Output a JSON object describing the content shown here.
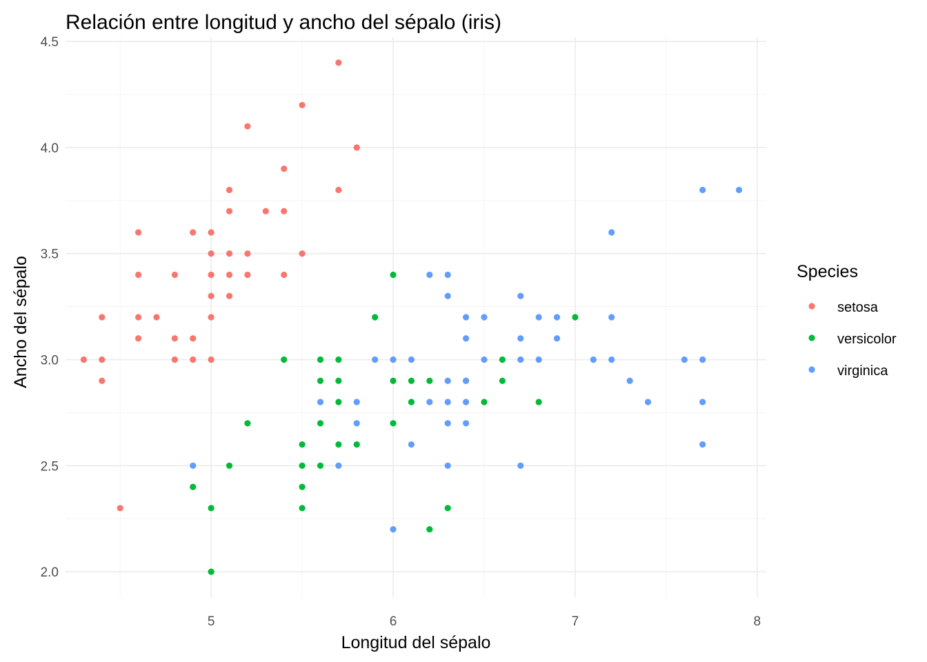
{
  "chart_data": {
    "type": "scatter",
    "title": "Relación entre longitud y ancho del sépalo (iris)",
    "xlabel": "Longitud del sépalo",
    "ylabel": "Ancho del sépalo",
    "xlim": [
      4.2,
      8.05
    ],
    "ylim": [
      1.88,
      4.52
    ],
    "x_ticks": [
      5,
      6,
      7,
      8
    ],
    "y_ticks": [
      2.0,
      2.5,
      3.0,
      3.5,
      4.0,
      4.5
    ],
    "x_tick_labels": [
      "5",
      "6",
      "7",
      "8"
    ],
    "y_tick_labels": [
      "2.0",
      "2.5",
      "3.0",
      "3.5",
      "4.0",
      "4.5"
    ],
    "grid": true,
    "legend": {
      "title": "Species",
      "position": "right"
    },
    "series": [
      {
        "name": "setosa",
        "color": "#f8766d",
        "points": [
          [
            5.7,
            4.4
          ],
          [
            5.5,
            4.2
          ],
          [
            5.2,
            4.1
          ],
          [
            5.8,
            4.0
          ],
          [
            5.4,
            3.9
          ],
          [
            5.1,
            3.8
          ],
          [
            5.7,
            3.8
          ],
          [
            5.1,
            3.7
          ],
          [
            5.3,
            3.7
          ],
          [
            5.4,
            3.7
          ],
          [
            4.6,
            3.6
          ],
          [
            4.9,
            3.6
          ],
          [
            5.0,
            3.6
          ],
          [
            5.0,
            3.5
          ],
          [
            5.1,
            3.5
          ],
          [
            5.2,
            3.5
          ],
          [
            5.5,
            3.5
          ],
          [
            4.6,
            3.4
          ],
          [
            4.8,
            3.4
          ],
          [
            5.0,
            3.4
          ],
          [
            5.1,
            3.4
          ],
          [
            5.2,
            3.4
          ],
          [
            5.4,
            3.4
          ],
          [
            5.0,
            3.3
          ],
          [
            5.1,
            3.3
          ],
          [
            4.4,
            3.2
          ],
          [
            4.6,
            3.2
          ],
          [
            4.7,
            3.2
          ],
          [
            5.0,
            3.2
          ],
          [
            4.6,
            3.1
          ],
          [
            4.8,
            3.1
          ],
          [
            4.9,
            3.1
          ],
          [
            4.3,
            3.0
          ],
          [
            4.4,
            3.0
          ],
          [
            4.8,
            3.0
          ],
          [
            4.9,
            3.0
          ],
          [
            5.0,
            3.0
          ],
          [
            4.4,
            2.9
          ],
          [
            4.5,
            2.3
          ]
        ]
      },
      {
        "name": "versicolor",
        "color": "#00ba38",
        "points": [
          [
            6.0,
            3.4
          ],
          [
            5.9,
            3.2
          ],
          [
            7.0,
            3.2
          ],
          [
            5.4,
            3.0
          ],
          [
            5.6,
            3.0
          ],
          [
            5.7,
            3.0
          ],
          [
            6.6,
            3.0
          ],
          [
            5.6,
            2.9
          ],
          [
            5.7,
            2.9
          ],
          [
            6.0,
            2.9
          ],
          [
            6.1,
            2.9
          ],
          [
            6.2,
            2.9
          ],
          [
            6.4,
            2.9
          ],
          [
            6.6,
            2.9
          ],
          [
            5.7,
            2.8
          ],
          [
            6.1,
            2.8
          ],
          [
            6.5,
            2.8
          ],
          [
            6.8,
            2.8
          ],
          [
            5.2,
            2.7
          ],
          [
            5.6,
            2.7
          ],
          [
            6.0,
            2.7
          ],
          [
            5.5,
            2.6
          ],
          [
            5.7,
            2.6
          ],
          [
            5.8,
            2.6
          ],
          [
            5.1,
            2.5
          ],
          [
            5.5,
            2.5
          ],
          [
            5.6,
            2.5
          ],
          [
            4.9,
            2.4
          ],
          [
            5.5,
            2.4
          ],
          [
            5.0,
            2.3
          ],
          [
            5.5,
            2.3
          ],
          [
            6.3,
            2.3
          ],
          [
            6.2,
            2.2
          ],
          [
            5.0,
            2.0
          ]
        ]
      },
      {
        "name": "virginica",
        "color": "#619cff",
        "points": [
          [
            7.7,
            3.8
          ],
          [
            7.9,
            3.8
          ],
          [
            7.2,
            3.6
          ],
          [
            6.2,
            3.4
          ],
          [
            6.3,
            3.4
          ],
          [
            6.3,
            3.3
          ],
          [
            6.7,
            3.3
          ],
          [
            6.4,
            3.2
          ],
          [
            6.5,
            3.2
          ],
          [
            6.8,
            3.2
          ],
          [
            6.9,
            3.2
          ],
          [
            7.2,
            3.2
          ],
          [
            6.4,
            3.1
          ],
          [
            6.7,
            3.1
          ],
          [
            6.9,
            3.1
          ],
          [
            5.9,
            3.0
          ],
          [
            6.0,
            3.0
          ],
          [
            6.1,
            3.0
          ],
          [
            6.5,
            3.0
          ],
          [
            6.7,
            3.0
          ],
          [
            6.8,
            3.0
          ],
          [
            7.1,
            3.0
          ],
          [
            7.2,
            3.0
          ],
          [
            7.6,
            3.0
          ],
          [
            7.7,
            3.0
          ],
          [
            6.3,
            2.9
          ],
          [
            6.4,
            2.9
          ],
          [
            7.3,
            2.9
          ],
          [
            5.6,
            2.8
          ],
          [
            5.8,
            2.8
          ],
          [
            6.2,
            2.8
          ],
          [
            6.3,
            2.8
          ],
          [
            6.4,
            2.8
          ],
          [
            7.4,
            2.8
          ],
          [
            7.7,
            2.8
          ],
          [
            5.8,
            2.7
          ],
          [
            6.3,
            2.7
          ],
          [
            6.4,
            2.7
          ],
          [
            6.1,
            2.6
          ],
          [
            7.7,
            2.6
          ],
          [
            4.9,
            2.5
          ],
          [
            5.7,
            2.5
          ],
          [
            6.3,
            2.5
          ],
          [
            6.7,
            2.5
          ],
          [
            6.0,
            2.2
          ]
        ]
      }
    ]
  }
}
